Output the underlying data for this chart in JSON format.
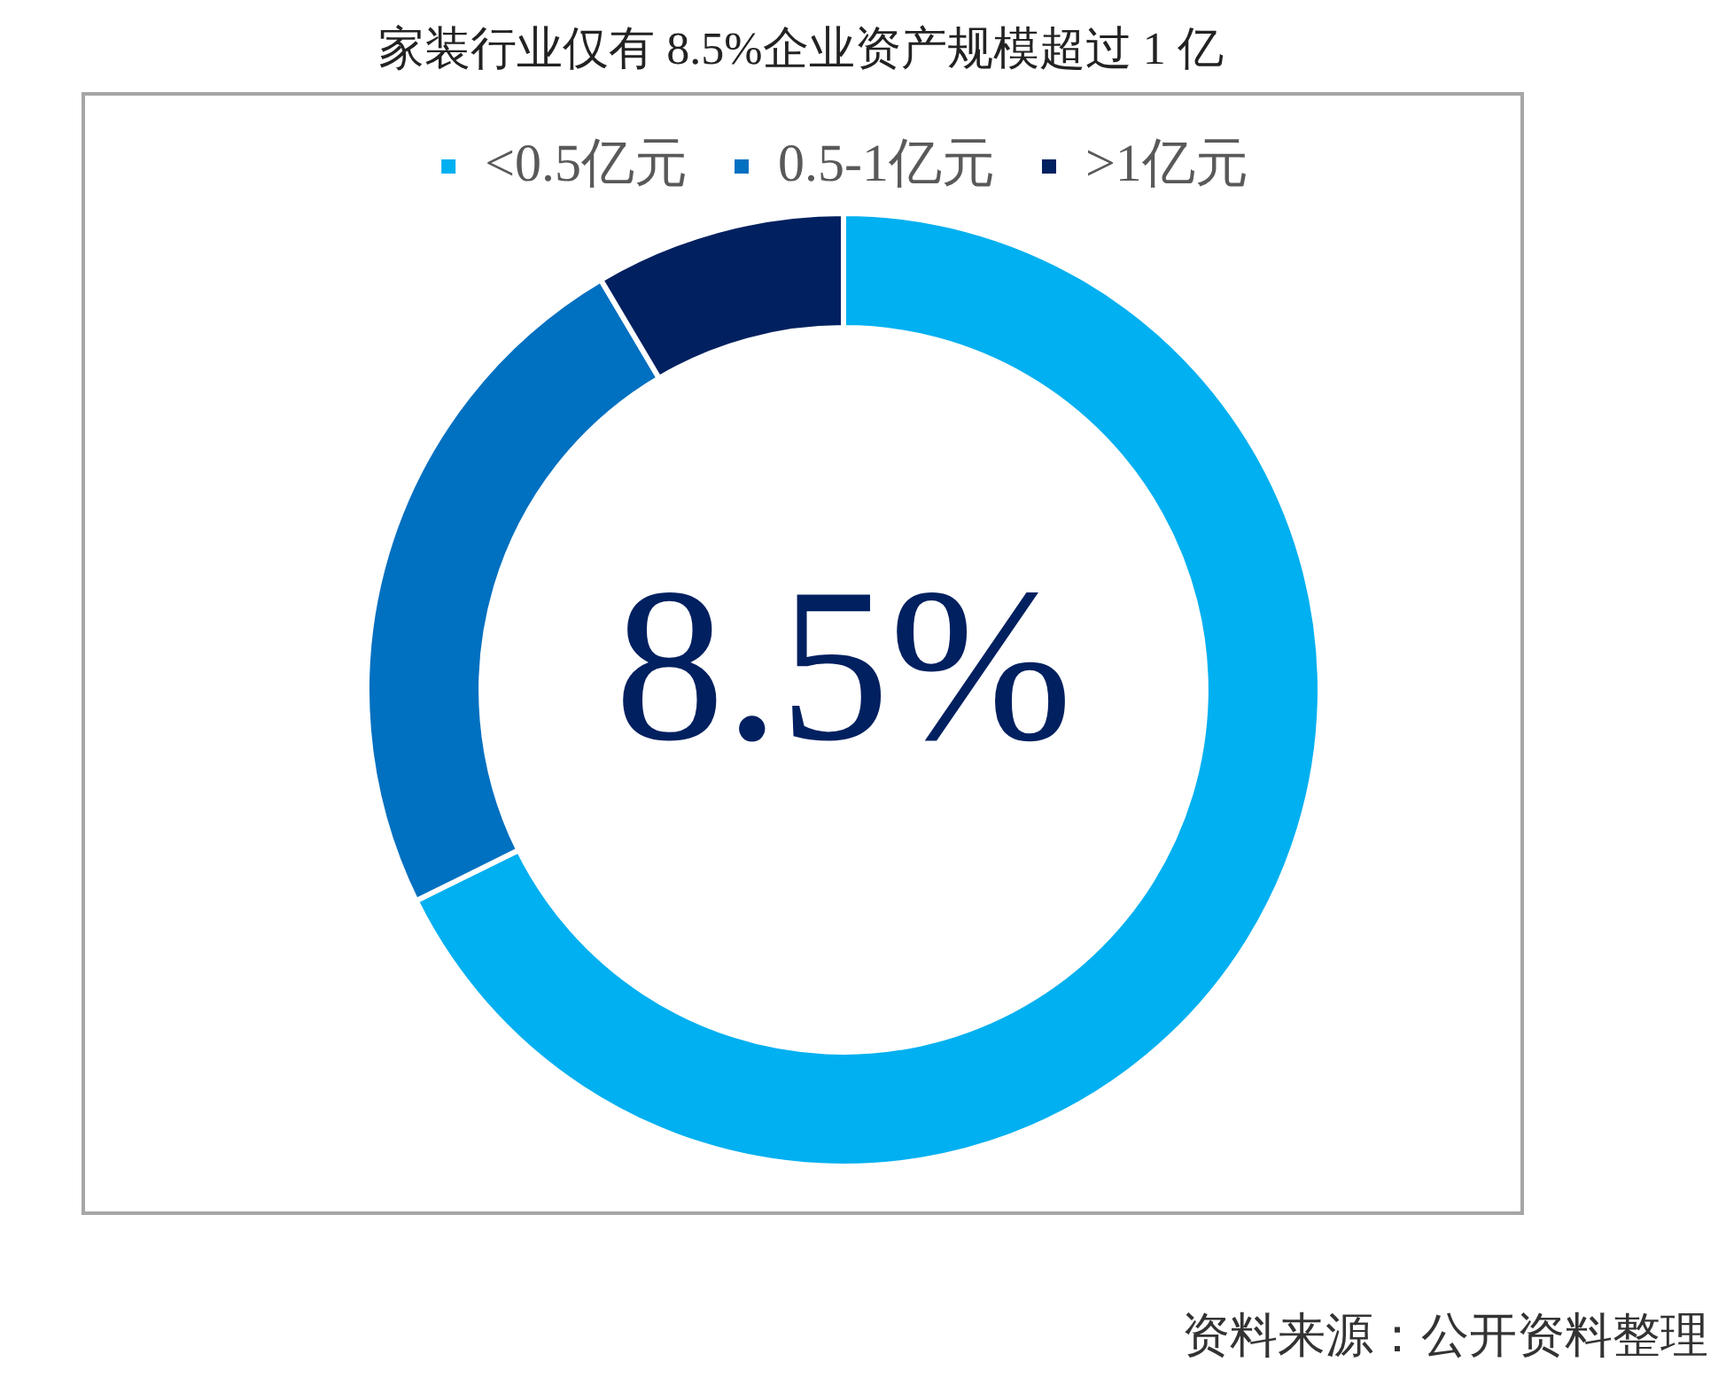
{
  "chart_data": {
    "type": "donut",
    "title": "家装行业仅有 8.5%企业资产规模超过 1 亿",
    "categories": [
      "<0.5亿元",
      "0.5-1亿元",
      ">1亿元"
    ],
    "values": [
      67.7,
      23.8,
      8.5
    ],
    "colors": [
      "#00b0f0",
      "#0070c0",
      "#002060"
    ],
    "legend": "top",
    "annotations": [
      "8.5%",
      "资料来源：公开资料整理"
    ]
  }
}
